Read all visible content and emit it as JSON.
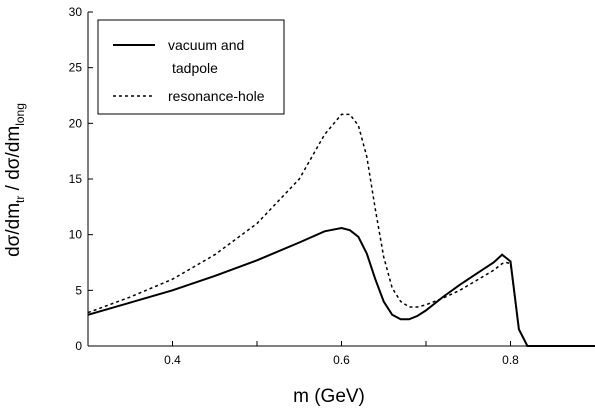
{
  "chart_data": {
    "type": "line",
    "xlabel": "m (GeV)",
    "ylabel": {
      "parts": [
        {
          "text": "dσ/dm",
          "sub": false
        },
        {
          "text": "tr",
          "sub": true
        },
        {
          "text": " / dσ/dm",
          "sub": false
        },
        {
          "text": "long",
          "sub": true
        }
      ]
    },
    "xlim": [
      0.3,
      0.9
    ],
    "ylim": [
      0,
      30
    ],
    "xticks": [
      0.4,
      0.5,
      0.6,
      0.7,
      0.8
    ],
    "xtick_labels": [
      "0.4",
      "",
      "0.6",
      "",
      "0.8"
    ],
    "yticks": [
      0,
      5,
      10,
      15,
      20,
      25,
      30
    ],
    "ytick_labels": [
      "0",
      "5",
      "10",
      "15",
      "20",
      "25",
      "30"
    ],
    "grid": false,
    "legend_position": "top-left",
    "legend": [
      {
        "line1": "vacuum and",
        "line2": "tadpole",
        "style": "solid"
      },
      {
        "line1": "resonance-hole",
        "line2": "",
        "style": "dashed"
      }
    ],
    "series": [
      {
        "style": "solid",
        "x": [
          0.3,
          0.35,
          0.4,
          0.45,
          0.5,
          0.55,
          0.58,
          0.6,
          0.61,
          0.62,
          0.63,
          0.64,
          0.65,
          0.66,
          0.67,
          0.68,
          0.69,
          0.7,
          0.72,
          0.74,
          0.76,
          0.78,
          0.79,
          0.795,
          0.8,
          0.81,
          0.82,
          0.85,
          0.9
        ],
        "y": [
          2.8,
          3.9,
          5.0,
          6.3,
          7.7,
          9.3,
          10.3,
          10.6,
          10.4,
          9.8,
          8.3,
          6.0,
          4.0,
          2.8,
          2.4,
          2.4,
          2.7,
          3.2,
          4.4,
          5.5,
          6.5,
          7.5,
          8.2,
          7.9,
          7.6,
          1.5,
          0.0,
          0.0,
          0.0
        ]
      },
      {
        "style": "dashed",
        "x": [
          0.3,
          0.35,
          0.4,
          0.45,
          0.5,
          0.55,
          0.58,
          0.6,
          0.61,
          0.62,
          0.63,
          0.64,
          0.65,
          0.66,
          0.67,
          0.68,
          0.69,
          0.7,
          0.72,
          0.74,
          0.76,
          0.78,
          0.79,
          0.795,
          0.8,
          0.81,
          0.82,
          0.85,
          0.9
        ],
        "y": [
          3.0,
          4.4,
          6.0,
          8.2,
          11.0,
          15.0,
          19.0,
          20.8,
          20.8,
          19.8,
          17.0,
          12.3,
          8.0,
          5.2,
          4.0,
          3.5,
          3.5,
          3.7,
          4.3,
          5.0,
          5.9,
          6.8,
          7.4,
          7.5,
          7.4,
          1.5,
          0.0,
          0.0,
          0.0
        ]
      }
    ]
  }
}
